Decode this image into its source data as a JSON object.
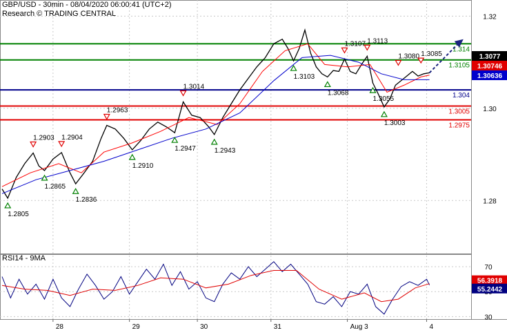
{
  "header": {
    "symbol_line": "GBP/USD - 30min - 08/04/2020 06:00:41 (UTC+2)",
    "source_line": "Research © TRADING CENTRAL"
  },
  "rsi_title": "RSI14 - 9MA",
  "colors": {
    "price": "#000000",
    "ma_fast": "#ff0000",
    "ma_slow": "#0000cc",
    "resistance": "#008000",
    "pivot": "#00008b",
    "support": "#e00000",
    "arrow": "#1a237e",
    "grid": "#c8c8c8",
    "rsi_fast": "#000080",
    "rsi_slow": "#e00000"
  },
  "chart_data": [
    {
      "type": "line",
      "title": "GBP/USD - 30min - 08/04/2020 06:00:41 (UTC+2)",
      "x_ticks": [
        "28",
        "29",
        "30",
        "31",
        "Aug 3",
        "4"
      ],
      "ylim": [
        1.2685,
        1.3235
      ],
      "y_ticks": [
        1.28,
        1.3,
        1.32
      ],
      "y_tick_labels": [
        "1.28",
        "1.30",
        "1.32"
      ],
      "grid": true,
      "series": [
        {
          "role": "price",
          "points": [
            [
              0,
              1.2825
            ],
            [
              2,
              1.2805
            ],
            [
              5,
              1.285
            ],
            [
              8,
              1.288
            ],
            [
              11,
              1.2903
            ],
            [
              13,
              1.2875
            ],
            [
              15,
              1.2865
            ],
            [
              18,
              1.289
            ],
            [
              21,
              1.2904
            ],
            [
              24,
              1.286
            ],
            [
              26,
              1.2836
            ],
            [
              29,
              1.286
            ],
            [
              32,
              1.2885
            ],
            [
              35,
              1.2935
            ],
            [
              37,
              1.2963
            ],
            [
              40,
              1.2955
            ],
            [
              43,
              1.2935
            ],
            [
              46,
              1.291
            ],
            [
              49,
              1.293
            ],
            [
              52,
              1.2955
            ],
            [
              55,
              1.297
            ],
            [
              58,
              1.296
            ],
            [
              61,
              1.2947
            ],
            [
              64,
              1.3014
            ],
            [
              67,
              1.2985
            ],
            [
              70,
              1.298
            ],
            [
              73,
              1.296
            ],
            [
              75,
              1.2943
            ],
            [
              78,
              1.298
            ],
            [
              81,
              1.301
            ],
            [
              84,
              1.304
            ],
            [
              87,
              1.3065
            ],
            [
              90,
              1.309
            ],
            [
              93,
              1.311
            ],
            [
              96,
              1.314
            ],
            [
              99,
              1.315
            ],
            [
              101,
              1.313
            ],
            [
              103,
              1.3103
            ],
            [
              105,
              1.313
            ],
            [
              107,
              1.317
            ],
            [
              109,
              1.312
            ],
            [
              111,
              1.309
            ],
            [
              113,
              1.3075
            ],
            [
              115,
              1.3068
            ],
            [
              117,
              1.3082
            ],
            [
              119,
              1.308
            ],
            [
              121,
              1.3107
            ],
            [
              123,
              1.308
            ],
            [
              125,
              1.3075
            ],
            [
              127,
              1.3095
            ],
            [
              129,
              1.3113
            ],
            [
              131,
              1.3055
            ],
            [
              133,
              1.303
            ],
            [
              135,
              1.3003
            ],
            [
              137,
              1.302
            ],
            [
              139,
              1.305
            ],
            [
              141,
              1.306
            ],
            [
              143,
              1.307
            ],
            [
              145,
              1.308
            ],
            [
              147,
              1.307
            ],
            [
              149,
              1.3075
            ],
            [
              151,
              1.3077
            ]
          ]
        },
        {
          "role": "ma_fast",
          "points": [
            [
              0,
              1.283
            ],
            [
              10,
              1.286
            ],
            [
              20,
              1.288
            ],
            [
              28,
              1.286
            ],
            [
              36,
              1.2905
            ],
            [
              46,
              1.2925
            ],
            [
              56,
              1.295
            ],
            [
              66,
              1.298
            ],
            [
              76,
              1.2965
            ],
            [
              84,
              1.301
            ],
            [
              92,
              1.308
            ],
            [
              100,
              1.3125
            ],
            [
              108,
              1.314
            ],
            [
              114,
              1.3095
            ],
            [
              122,
              1.309
            ],
            [
              130,
              1.3095
            ],
            [
              136,
              1.3035
            ],
            [
              142,
              1.305
            ],
            [
              148,
              1.3068
            ],
            [
              151,
              1.3072
            ]
          ]
        },
        {
          "role": "ma_slow",
          "points": [
            [
              0,
              1.2815
            ],
            [
              12,
              1.2845
            ],
            [
              24,
              1.2865
            ],
            [
              36,
              1.2885
            ],
            [
              48,
              1.291
            ],
            [
              60,
              1.2935
            ],
            [
              72,
              1.2955
            ],
            [
              84,
              1.299
            ],
            [
              96,
              1.306
            ],
            [
              106,
              1.311
            ],
            [
              116,
              1.3115
            ],
            [
              126,
              1.31
            ],
            [
              134,
              1.3075
            ],
            [
              142,
              1.3062
            ],
            [
              151,
              1.3062
            ]
          ]
        }
      ],
      "levels": [
        {
          "kind": "resistance",
          "value": 1.314,
          "label": "1.314"
        },
        {
          "kind": "resistance",
          "value": 1.3105,
          "label": "1.3105"
        },
        {
          "kind": "pivot",
          "value": 1.304,
          "label": "1.304"
        },
        {
          "kind": "support",
          "value": 1.3005,
          "label": "1.3005"
        },
        {
          "kind": "support",
          "value": 1.2975,
          "label": "1.2975"
        }
      ],
      "current_price_tags": [
        {
          "value": 1.3077,
          "label": "1.3077",
          "bg": "#000000"
        },
        {
          "value": 1.30746,
          "label": "1.30746",
          "bg": "#e00000"
        },
        {
          "value": 1.30636,
          "label": "1.30636",
          "bg": "#0000cc"
        }
      ],
      "swing_annotations": [
        {
          "x": 2,
          "price": 1.2805,
          "label": "1.2805",
          "kind": "low"
        },
        {
          "x": 11,
          "price": 1.2903,
          "label": "1.2903",
          "kind": "high"
        },
        {
          "x": 15,
          "price": 1.2865,
          "label": "1.2865",
          "kind": "low"
        },
        {
          "x": 21,
          "price": 1.2904,
          "label": "1.2904",
          "kind": "high"
        },
        {
          "x": 26,
          "price": 1.2836,
          "label": "1.2836",
          "kind": "low"
        },
        {
          "x": 37,
          "price": 1.2963,
          "label": "1.2963",
          "kind": "high"
        },
        {
          "x": 46,
          "price": 1.291,
          "label": "1.2910",
          "kind": "low"
        },
        {
          "x": 61,
          "price": 1.2947,
          "label": "1.2947",
          "kind": "low"
        },
        {
          "x": 64,
          "price": 1.3014,
          "label": "1.3014",
          "kind": "high"
        },
        {
          "x": 75,
          "price": 1.2943,
          "label": "1.2943",
          "kind": "low"
        },
        {
          "x": 103,
          "price": 1.3103,
          "label": "1.3103",
          "kind": "low"
        },
        {
          "x": 115,
          "price": 1.3068,
          "label": "1.3068",
          "kind": "low"
        },
        {
          "x": 121,
          "price": 1.3107,
          "label": "1.3107",
          "kind": "high"
        },
        {
          "x": 129,
          "price": 1.3113,
          "label": "1.3113",
          "kind": "high"
        },
        {
          "x": 131,
          "price": 1.3055,
          "label": "1.3055",
          "kind": "low"
        },
        {
          "x": 135,
          "price": 1.3003,
          "label": "1.3003",
          "kind": "low"
        },
        {
          "x": 140,
          "price": 1.308,
          "label": "1.3080",
          "kind": "high"
        },
        {
          "x": 148,
          "price": 1.3085,
          "label": "1.3085",
          "kind": "high"
        }
      ],
      "forecast_arrow": {
        "from": [
          151,
          1.3077
        ],
        "to": [
          163,
          1.315
        ]
      }
    },
    {
      "type": "line",
      "title": "RSI14 - 9MA",
      "ylim": [
        28,
        80
      ],
      "y_ticks": [
        30,
        50,
        70
      ],
      "y_tick_labels": [
        "30",
        "50",
        "70"
      ],
      "grid": true,
      "series": [
        {
          "role": "rsi_fast",
          "points": [
            [
              0,
              62
            ],
            [
              3,
              45
            ],
            [
              6,
              60
            ],
            [
              9,
              48
            ],
            [
              12,
              56
            ],
            [
              15,
              44
            ],
            [
              18,
              60
            ],
            [
              21,
              45
            ],
            [
              24,
              38
            ],
            [
              27,
              52
            ],
            [
              30,
              64
            ],
            [
              33,
              55
            ],
            [
              36,
              44
            ],
            [
              39,
              50
            ],
            [
              42,
              62
            ],
            [
              45,
              48
            ],
            [
              48,
              58
            ],
            [
              51,
              68
            ],
            [
              54,
              60
            ],
            [
              57,
              72
            ],
            [
              60,
              55
            ],
            [
              63,
              66
            ],
            [
              66,
              52
            ],
            [
              69,
              58
            ],
            [
              72,
              45
            ],
            [
              75,
              42
            ],
            [
              78,
              56
            ],
            [
              81,
              65
            ],
            [
              84,
              60
            ],
            [
              87,
              70
            ],
            [
              90,
              62
            ],
            [
              93,
              68
            ],
            [
              96,
              74
            ],
            [
              99,
              66
            ],
            [
              102,
              72
            ],
            [
              105,
              64
            ],
            [
              108,
              56
            ],
            [
              111,
              42
            ],
            [
              114,
              40
            ],
            [
              117,
              46
            ],
            [
              120,
              38
            ],
            [
              123,
              50
            ],
            [
              126,
              48
            ],
            [
              129,
              56
            ],
            [
              132,
              38
            ],
            [
              135,
              32
            ],
            [
              138,
              44
            ],
            [
              141,
              54
            ],
            [
              144,
              58
            ],
            [
              147,
              55
            ],
            [
              150,
              60
            ],
            [
              151,
              55.2442
            ]
          ]
        },
        {
          "role": "rsi_slow",
          "points": [
            [
              0,
              55
            ],
            [
              8,
              52
            ],
            [
              16,
              51
            ],
            [
              24,
              47
            ],
            [
              32,
              52
            ],
            [
              40,
              51
            ],
            [
              48,
              55
            ],
            [
              56,
              61
            ],
            [
              64,
              60
            ],
            [
              72,
              53
            ],
            [
              80,
              56
            ],
            [
              88,
              63
            ],
            [
              96,
              67
            ],
            [
              104,
              67
            ],
            [
              112,
              52
            ],
            [
              120,
              44
            ],
            [
              128,
              49
            ],
            [
              134,
              42
            ],
            [
              140,
              44
            ],
            [
              146,
              53
            ],
            [
              151,
              56.3918
            ]
          ]
        }
      ],
      "value_tags": [
        {
          "role": "rsi_slow",
          "value": 56.3918,
          "label": "56.3918"
        },
        {
          "role": "rsi_fast",
          "value": 55.2442,
          "label": "55.2442"
        }
      ]
    }
  ]
}
